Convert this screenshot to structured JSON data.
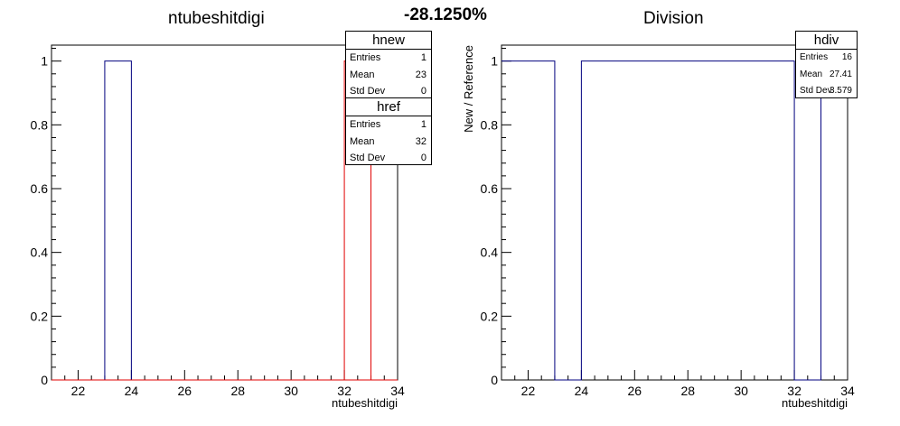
{
  "page": {
    "ratio_label": "-28.1250%"
  },
  "chart_data": [
    {
      "type": "histogram",
      "title": "ntubeshitdigi",
      "xlabel": "ntubeshitdigi",
      "ylabel": "",
      "xlim": [
        21,
        34
      ],
      "ylim": [
        0,
        1.05
      ],
      "xticks": [
        22,
        24,
        26,
        28,
        30,
        32,
        34
      ],
      "yticks": [
        0,
        0.2,
        0.4,
        0.6,
        0.8,
        1
      ],
      "series": [
        {
          "name": "hnew",
          "color": "#00007f",
          "bins": [
            {
              "x0": 23,
              "x1": 24,
              "y": 1
            }
          ]
        },
        {
          "name": "href",
          "color": "#e00000",
          "bins": [
            {
              "x0": 32,
              "x1": 33,
              "y": 1
            }
          ]
        }
      ],
      "stats": [
        {
          "name": "hnew",
          "entries_label": "Entries",
          "entries": "1",
          "mean_label": "Mean",
          "mean": "23",
          "std_label": "Std Dev",
          "std": "0"
        },
        {
          "name": "href",
          "entries_label": "Entries",
          "entries": "1",
          "mean_label": "Mean",
          "mean": "32",
          "std_label": "Std Dev",
          "std": "0"
        }
      ]
    },
    {
      "type": "histogram",
      "title": "Division",
      "xlabel": "ntubeshitdigi",
      "ylabel": "New / Reference",
      "xlim": [
        21,
        34
      ],
      "ylim": [
        0,
        1.05
      ],
      "xticks": [
        22,
        24,
        26,
        28,
        30,
        32,
        34
      ],
      "yticks": [
        0,
        0.2,
        0.4,
        0.6,
        0.8,
        1
      ],
      "series": [
        {
          "name": "hdiv",
          "color": "#00007f",
          "bins": [
            {
              "x0": 21,
              "x1": 23,
              "y": 1
            },
            {
              "x0": 23,
              "x1": 24,
              "y": 0
            },
            {
              "x0": 24,
              "x1": 32,
              "y": 1
            },
            {
              "x0": 32,
              "x1": 33,
              "y": 0
            },
            {
              "x0": 33,
              "x1": 34,
              "y": 1
            }
          ]
        }
      ],
      "stats": [
        {
          "name": "hdiv",
          "entries_label": "Entries",
          "entries": "16",
          "mean_label": "Mean",
          "mean": "27.41",
          "std_label": "Std Dev",
          "std": "3.579"
        }
      ]
    }
  ]
}
